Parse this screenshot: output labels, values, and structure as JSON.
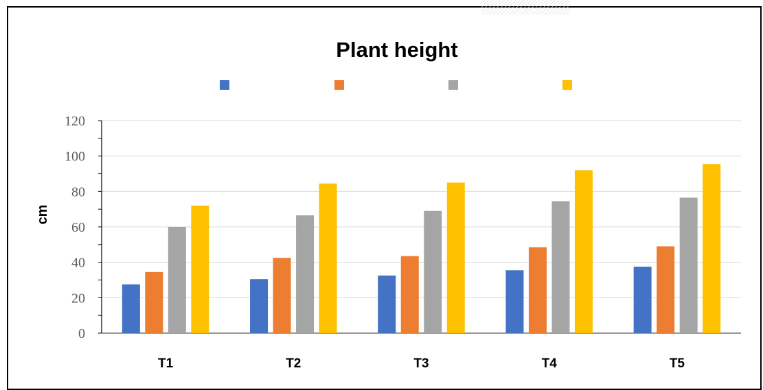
{
  "chart_data": {
    "type": "bar",
    "title": "Plant height",
    "xlabel": "",
    "ylabel": "cm",
    "ylim": [
      0,
      120
    ],
    "yticks": [
      "0",
      "20",
      "40",
      "60",
      "80",
      "100",
      "120"
    ],
    "categories": [
      "T1",
      "T2",
      "T3",
      "T4",
      "T5"
    ],
    "grid": true,
    "legend_position": "top",
    "series": [
      {
        "color": "#4472C4",
        "values": [
          27.5,
          30.5,
          32.5,
          35.5,
          37.5
        ]
      },
      {
        "color": "#ED7D31",
        "values": [
          34.5,
          42.5,
          43.5,
          48.5,
          49
        ]
      },
      {
        "color": "#A5A5A5",
        "values": [
          60,
          66.5,
          69,
          74.5,
          76.5
        ]
      },
      {
        "color": "#FFC000",
        "values": [
          72,
          84.5,
          85,
          92,
          95.5
        ]
      }
    ]
  }
}
